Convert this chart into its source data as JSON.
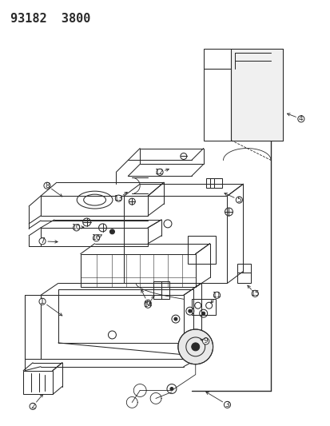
{
  "title": "93182  3800",
  "bg_color": "#ffffff",
  "line_color": "#2a2a2a",
  "fig_width": 4.14,
  "fig_height": 5.33,
  "dpi": 100,
  "title_fontsize": 11,
  "label_fontsize": 6.5,
  "label_circle_r": 0.018
}
